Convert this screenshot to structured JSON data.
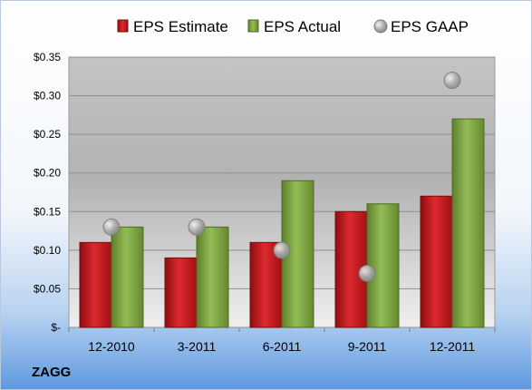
{
  "chart_data": {
    "type": "bar",
    "categories": [
      "12-2010",
      "3-2011",
      "6-2011",
      "9-2011",
      "12-2011"
    ],
    "series": [
      {
        "name": "EPS Estimate",
        "kind": "bar",
        "color": "#c0161c",
        "values": [
          0.11,
          0.09,
          0.11,
          0.15,
          0.17
        ]
      },
      {
        "name": "EPS Actual",
        "kind": "bar",
        "color": "#7fa640",
        "values": [
          0.13,
          0.13,
          0.19,
          0.16,
          0.27
        ]
      },
      {
        "name": "EPS GAAP",
        "kind": "marker",
        "color": "#a9a9a9",
        "values": [
          0.13,
          0.13,
          0.1,
          0.07,
          0.32
        ]
      }
    ],
    "ylim": [
      0,
      0.35
    ],
    "yticks": [
      {
        "value": 0.35,
        "label": "$0.35"
      },
      {
        "value": 0.3,
        "label": "$0.30"
      },
      {
        "value": 0.25,
        "label": "$0.25"
      },
      {
        "value": 0.2,
        "label": "$0.20"
      },
      {
        "value": 0.15,
        "label": "$0.15"
      },
      {
        "value": 0.1,
        "label": "$0.10"
      },
      {
        "value": 0.05,
        "label": "$0.05"
      },
      {
        "value": 0,
        "label": "$-"
      }
    ],
    "grid": true,
    "legend": "top"
  },
  "brand_label": "ZAGG"
}
